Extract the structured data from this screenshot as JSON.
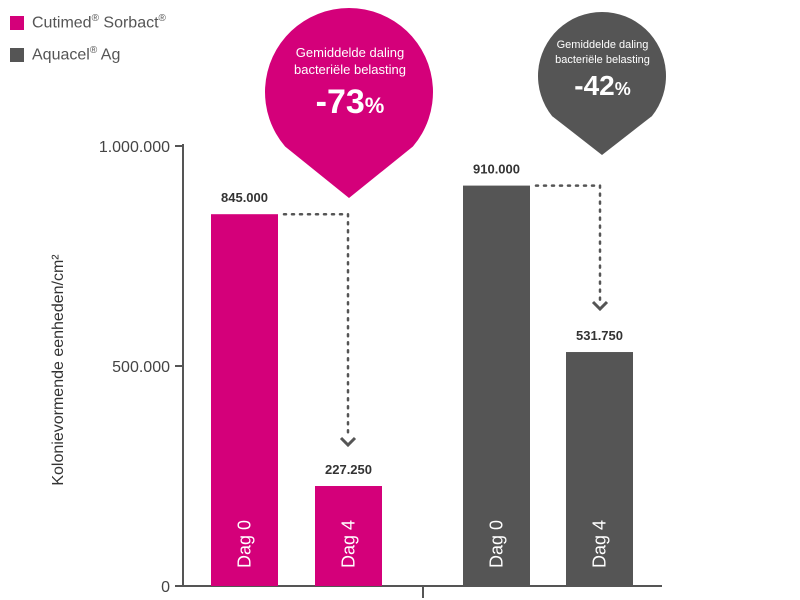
{
  "legend": [
    {
      "name": "Cutimed",
      "sup": "®",
      "name2": " Sorbact",
      "sup2": "®",
      "color": "#d4007a"
    },
    {
      "name": "Aquacel",
      "sup": "®",
      "name2": " Ag",
      "sup2": "",
      "color": "#555555"
    }
  ],
  "yaxis_label": "Kolonievormende eenheden/cm²",
  "callouts": [
    {
      "text": "Gemiddelde daling bacteriële belasting",
      "value": "-73",
      "unit": "%",
      "color": "#d4007a"
    },
    {
      "text": "Gemiddelde daling bacteriële belasting",
      "value": "-42",
      "unit": "%",
      "color": "#555555"
    }
  ],
  "chart_data": {
    "type": "bar",
    "categories": [
      "Dag 0",
      "Dag 4",
      "Dag 0",
      "Dag 4"
    ],
    "values": [
      845000,
      227250,
      910000,
      531750
    ],
    "value_labels": [
      "845.000",
      "227.250",
      "910.000",
      "531.750"
    ],
    "bar_colors": [
      "#d4007a",
      "#d4007a",
      "#555555",
      "#555555"
    ],
    "groups": [
      "Cutimed® Sorbact®",
      "Cutimed® Sorbact®",
      "Aquacel® Ag",
      "Aquacel® Ag"
    ],
    "yticks": [
      0,
      500000,
      1000000
    ],
    "ytick_labels": [
      "0",
      "500.000",
      "1.000.000"
    ],
    "ylim": [
      0,
      1000000
    ],
    "ylabel": "Kolonievormende eenheden/cm²"
  }
}
